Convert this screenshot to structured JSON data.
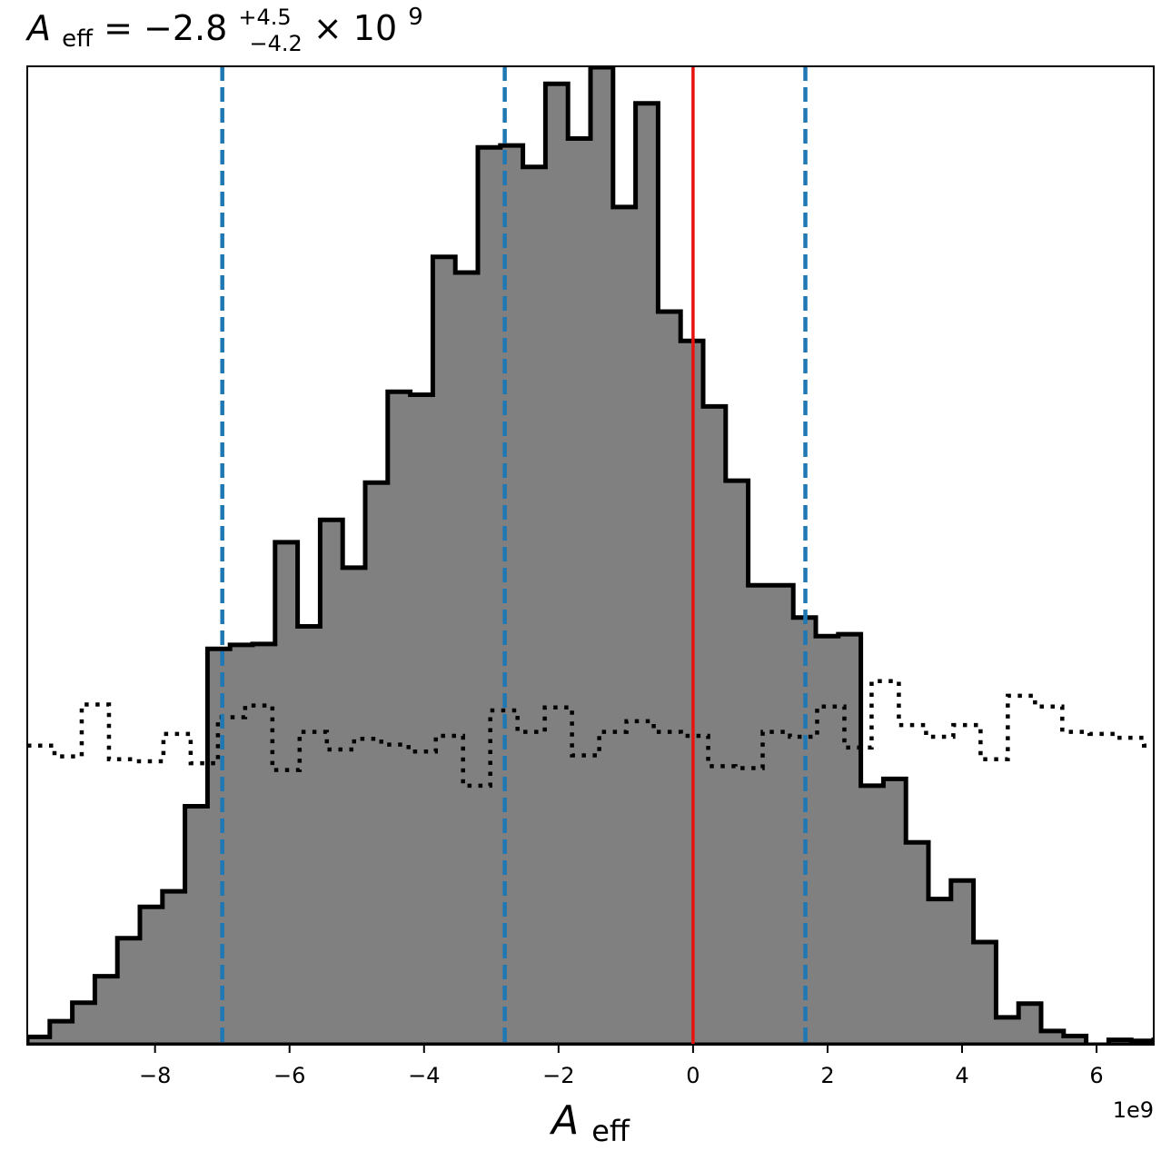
{
  "chart_data": {
    "type": "histogram",
    "title": {
      "symbol": "A",
      "symbol_subscript": "eff",
      "equals": " = ",
      "value": "−2.8",
      "upper": "+4.5",
      "lower": "−4.2",
      "times": " × 10",
      "exponent": "9"
    },
    "xlabel": {
      "symbol": "A",
      "subscript": "eff"
    },
    "offset_label": "1e9",
    "xlim": [
      -9.9,
      6.85
    ],
    "ylim": [
      0,
      1.0
    ],
    "grid": false,
    "x_ticks": [
      {
        "value": -8,
        "label": "−8"
      },
      {
        "value": -6,
        "label": "−6"
      },
      {
        "value": -4,
        "label": "−4"
      },
      {
        "value": -2,
        "label": "−2"
      },
      {
        "value": 0,
        "label": "0"
      },
      {
        "value": 2,
        "label": "2"
      },
      {
        "value": 4,
        "label": "4"
      },
      {
        "value": 6,
        "label": "6"
      }
    ],
    "posterior_histogram": {
      "bin_start": -9.9,
      "bin_width": 0.335,
      "fill": "#808080",
      "stroke": "#000000",
      "values": [
        0.008,
        0.024,
        0.043,
        0.07,
        0.109,
        0.141,
        0.157,
        0.244,
        0.405,
        0.409,
        0.41,
        0.514,
        0.428,
        0.537,
        0.488,
        0.575,
        0.668,
        0.665,
        0.806,
        0.79,
        0.918,
        0.92,
        0.898,
        0.983,
        0.927,
        1.0,
        0.857,
        0.963,
        0.75,
        0.72,
        0.653,
        0.577,
        0.47,
        0.47,
        0.437,
        0.418,
        0.42,
        0.265,
        0.272,
        0.207,
        0.149,
        0.168,
        0.105,
        0.028,
        0.042,
        0.014,
        0.009,
        0.0,
        0.005,
        0.004,
        0.005,
        0.001
      ]
    },
    "prior_histogram": {
      "bin_start": -9.9,
      "bin_width": 0.405,
      "style": "dotted",
      "stroke": "#000000",
      "values": [
        0.306,
        0.295,
        0.348,
        0.292,
        0.29,
        0.318,
        0.288,
        0.335,
        0.347,
        0.281,
        0.32,
        0.302,
        0.313,
        0.307,
        0.3,
        0.316,
        0.265,
        0.342,
        0.32,
        0.345,
        0.296,
        0.32,
        0.331,
        0.32,
        0.316,
        0.285,
        0.283,
        0.32,
        0.315,
        0.346,
        0.304,
        0.372,
        0.327,
        0.315,
        0.327,
        0.292,
        0.357,
        0.346,
        0.32,
        0.318,
        0.314,
        0.306,
        0.327,
        0.293,
        0.29
      ]
    },
    "vertical_lines": [
      {
        "x": -7.0,
        "style": "dashed",
        "color": "#1f77b4"
      },
      {
        "x": -2.8,
        "style": "dashed",
        "color": "#1f77b4"
      },
      {
        "x": 1.67,
        "style": "dashed",
        "color": "#1f77b4"
      },
      {
        "x": 0.0,
        "style": "solid",
        "color": "#e8120c"
      }
    ]
  }
}
